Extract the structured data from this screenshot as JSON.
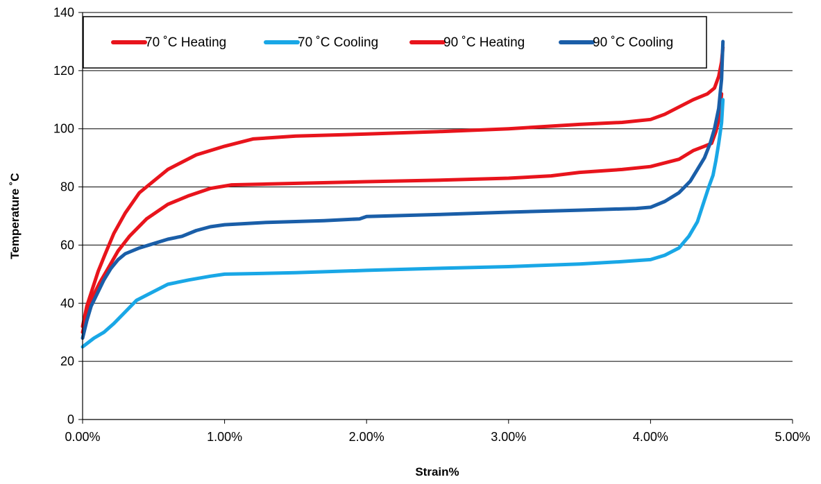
{
  "chart_data": {
    "type": "line",
    "title": "",
    "xlabel": "Strain%",
    "ylabel": "Temperature ˚C",
    "xlim": [
      0,
      5
    ],
    "ylim": [
      0,
      140
    ],
    "x_ticks": [
      0,
      1,
      2,
      3,
      4,
      5
    ],
    "x_tick_labels": [
      "0.00%",
      "1.00%",
      "2.00%",
      "3.00%",
      "4.00%",
      "5.00%"
    ],
    "y_ticks": [
      0,
      20,
      40,
      60,
      80,
      100,
      120,
      140
    ],
    "y_tick_labels": [
      "0",
      "20",
      "40",
      "60",
      "80",
      "100",
      "120",
      "140"
    ],
    "grid": "horizontal",
    "legend": "top",
    "series": [
      {
        "name": "70 ˚C Heating",
        "color": "#e8141c",
        "points": [
          [
            0.0,
            30
          ],
          [
            0.03,
            36
          ],
          [
            0.07,
            42
          ],
          [
            0.12,
            47
          ],
          [
            0.18,
            52
          ],
          [
            0.25,
            58
          ],
          [
            0.33,
            63
          ],
          [
            0.45,
            69
          ],
          [
            0.6,
            74
          ],
          [
            0.75,
            77
          ],
          [
            0.9,
            79.5
          ],
          [
            1.05,
            80.7
          ],
          [
            1.3,
            81
          ],
          [
            2.0,
            81.8
          ],
          [
            2.5,
            82.3
          ],
          [
            3.0,
            83
          ],
          [
            3.3,
            83.8
          ],
          [
            3.5,
            85
          ],
          [
            3.8,
            86
          ],
          [
            4.0,
            87
          ],
          [
            4.2,
            89.5
          ],
          [
            4.3,
            92.5
          ],
          [
            4.38,
            94
          ],
          [
            4.43,
            95
          ],
          [
            4.46,
            99
          ],
          [
            4.48,
            103
          ],
          [
            4.49,
            107
          ],
          [
            4.5,
            112
          ]
        ]
      },
      {
        "name": "70 ˚C Cooling",
        "color": "#19a7e6",
        "points": [
          [
            0.0,
            25
          ],
          [
            0.08,
            28
          ],
          [
            0.15,
            30
          ],
          [
            0.22,
            33
          ],
          [
            0.3,
            37
          ],
          [
            0.38,
            41
          ],
          [
            0.5,
            44
          ],
          [
            0.6,
            46.5
          ],
          [
            0.75,
            48
          ],
          [
            0.9,
            49.3
          ],
          [
            1.0,
            50
          ],
          [
            1.5,
            50.5
          ],
          [
            2.0,
            51.3
          ],
          [
            2.5,
            52
          ],
          [
            3.0,
            52.6
          ],
          [
            3.5,
            53.5
          ],
          [
            3.8,
            54.3
          ],
          [
            4.0,
            55
          ],
          [
            4.1,
            56.5
          ],
          [
            4.2,
            59
          ],
          [
            4.27,
            63
          ],
          [
            4.33,
            68
          ],
          [
            4.37,
            74
          ],
          [
            4.41,
            80
          ],
          [
            4.44,
            84
          ],
          [
            4.46,
            89
          ],
          [
            4.48,
            95
          ],
          [
            4.5,
            102
          ],
          [
            4.51,
            110
          ]
        ]
      },
      {
        "name": "90 ˚C Heating",
        "color": "#e8141c",
        "points": [
          [
            0.0,
            32
          ],
          [
            0.03,
            39
          ],
          [
            0.07,
            45
          ],
          [
            0.11,
            51
          ],
          [
            0.16,
            57
          ],
          [
            0.22,
            64
          ],
          [
            0.3,
            71
          ],
          [
            0.4,
            78
          ],
          [
            0.5,
            82
          ],
          [
            0.6,
            86
          ],
          [
            0.7,
            88.5
          ],
          [
            0.8,
            91
          ],
          [
            1.0,
            94
          ],
          [
            1.2,
            96.5
          ],
          [
            1.5,
            97.5
          ],
          [
            2.0,
            98.2
          ],
          [
            2.5,
            99
          ],
          [
            3.0,
            100
          ],
          [
            3.5,
            101.5
          ],
          [
            3.8,
            102.2
          ],
          [
            4.0,
            103.2
          ],
          [
            4.1,
            105
          ],
          [
            4.2,
            107.5
          ],
          [
            4.3,
            110
          ],
          [
            4.4,
            112
          ],
          [
            4.45,
            114
          ],
          [
            4.48,
            118
          ],
          [
            4.5,
            123
          ],
          [
            4.51,
            128
          ]
        ]
      },
      {
        "name": "90 ˚C Cooling",
        "color": "#1a5ea8",
        "points": [
          [
            0.0,
            28
          ],
          [
            0.03,
            34
          ],
          [
            0.06,
            39
          ],
          [
            0.1,
            43
          ],
          [
            0.15,
            48
          ],
          [
            0.2,
            52
          ],
          [
            0.25,
            55
          ],
          [
            0.3,
            57
          ],
          [
            0.4,
            59
          ],
          [
            0.5,
            60.5
          ],
          [
            0.6,
            62
          ],
          [
            0.7,
            63
          ],
          [
            0.8,
            65
          ],
          [
            0.9,
            66.3
          ],
          [
            1.0,
            67
          ],
          [
            1.3,
            67.8
          ],
          [
            1.7,
            68.4
          ],
          [
            1.95,
            69
          ],
          [
            2.0,
            69.8
          ],
          [
            2.5,
            70.5
          ],
          [
            3.0,
            71.3
          ],
          [
            3.5,
            72
          ],
          [
            3.9,
            72.6
          ],
          [
            4.0,
            73
          ],
          [
            4.1,
            75
          ],
          [
            4.2,
            78
          ],
          [
            4.28,
            82
          ],
          [
            4.33,
            86
          ],
          [
            4.38,
            90
          ],
          [
            4.42,
            95
          ],
          [
            4.45,
            100
          ],
          [
            4.48,
            107
          ],
          [
            4.5,
            117
          ],
          [
            4.51,
            130
          ]
        ]
      }
    ]
  }
}
